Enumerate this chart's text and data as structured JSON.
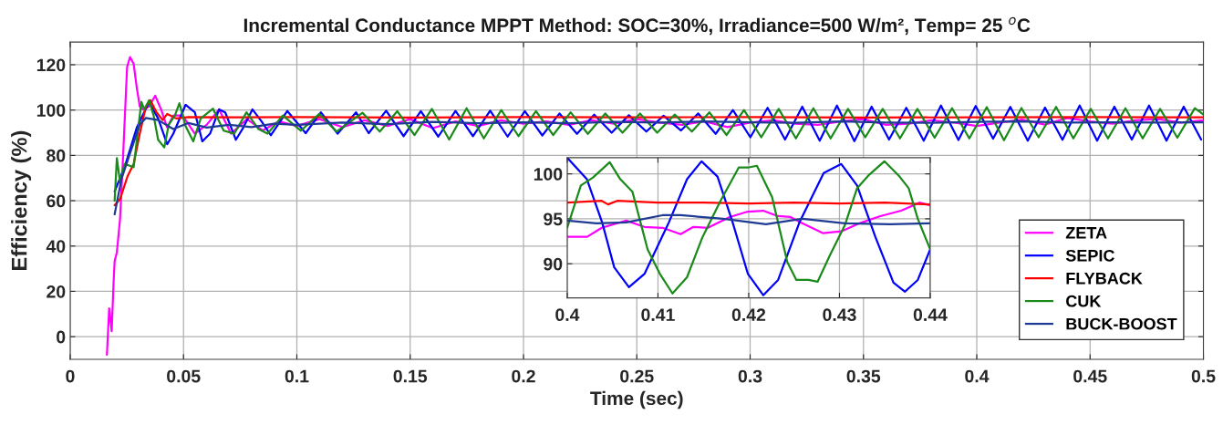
{
  "chart_data": [
    {
      "type": "line",
      "title": "Incremental Conductance MPPT Method: SOC=30%, Irradiance=500 W/m², Temp= 25 $^{o}$C",
      "xlabel": "Time (sec)",
      "ylabel": "Efficiency (%)",
      "xlim": [
        0,
        0.5
      ],
      "xticks": [
        0,
        0.05,
        0.1,
        0.15,
        0.2,
        0.25,
        0.3,
        0.35,
        0.4,
        0.45,
        0.5
      ],
      "ylim": [
        -10,
        130
      ],
      "yticks": [
        0,
        20,
        40,
        60,
        80,
        100,
        120
      ],
      "grid": true,
      "legend": "bottom right",
      "series": [
        {
          "name": "ZETA",
          "color": "#ff00ff",
          "x": [
            0.0162,
            0.0172,
            0.0183,
            0.0192,
            0.0196,
            0.0206,
            0.022,
            0.0233,
            0.0251,
            0.0264,
            0.028,
            0.0294,
            0.0307,
            0.0321,
            0.0348,
            0.0375,
            0.0401,
            0.0428,
            0.0455,
            0.0496,
            0.055,
            0.0603,
            0.0657,
            0.071,
            0.078,
            0.085,
            0.092,
            0.1,
            0.11,
            0.12,
            0.13,
            0.14,
            0.15,
            0.16,
            0.17,
            0.18,
            0.19,
            0.2,
            0.21,
            0.22,
            0.23,
            0.24,
            0.25,
            0.26,
            0.27,
            0.28,
            0.29,
            0.3,
            0.31,
            0.32,
            0.33,
            0.34,
            0.35,
            0.36,
            0.37,
            0.38,
            0.39,
            0.4,
            0.41,
            0.42,
            0.43,
            0.44,
            0.45,
            0.46,
            0.47,
            0.48,
            0.49,
            0.5
          ],
          "values": [
            -8,
            12.5,
            2.4,
            25.2,
            33.3,
            37.3,
            52,
            78.8,
            119,
            123.4,
            120.4,
            109.7,
            101.6,
            100.3,
            101.6,
            106.3,
            100.3,
            92.3,
            97.6,
            97.6,
            89.6,
            93.6,
            100.3,
            89.6,
            96,
            91,
            95,
            93,
            96,
            92.5,
            95.5,
            93,
            96,
            92,
            95,
            93,
            95.5,
            94,
            95,
            93.5,
            95.5,
            94,
            96,
            94.5,
            93.5,
            95,
            92.5,
            94.5,
            95.5,
            94,
            93.5,
            95,
            96,
            93.5,
            94,
            95.5,
            94.5,
            93,
            94.5,
            95.8,
            93.6,
            96.5,
            95,
            94,
            95.5,
            96,
            94.5,
            95.5
          ]
        },
        {
          "name": "SEPIC",
          "color": "#0000ff",
          "x": [
            0.0196,
            0.024,
            0.0294,
            0.0348,
            0.0388,
            0.0428,
            0.0455,
            0.0509,
            0.055,
            0.0583,
            0.0617,
            0.0657,
            0.0684,
            0.0731,
            0.0764,
            0.0804,
            0.0845,
            0.0885,
            0.0958,
            0.1039,
            0.1106,
            0.118,
            0.1261,
            0.1317,
            0.1394,
            0.1471,
            0.1547,
            0.1624,
            0.17,
            0.1777,
            0.1853,
            0.193,
            0.2006,
            0.2083,
            0.2159,
            0.2236,
            0.2312,
            0.2389,
            0.2465,
            0.2542,
            0.2618,
            0.2695,
            0.2771,
            0.2848,
            0.2924,
            0.3001,
            0.3077,
            0.3154,
            0.323,
            0.3307,
            0.3383,
            0.346,
            0.3536,
            0.3613,
            0.3689,
            0.3766,
            0.3842,
            0.3919,
            0.3995,
            0.4072,
            0.4148,
            0.4225,
            0.4301,
            0.4378,
            0.4454,
            0.4531,
            0.4607,
            0.4684,
            0.476,
            0.4837,
            0.4913,
            0.499
          ],
          "values": [
            64.1,
            74.8,
            92.3,
            103.5,
            96.3,
            84.9,
            89.6,
            102.3,
            99,
            86.2,
            89.6,
            100.3,
            99,
            86.9,
            92.3,
            100.3,
            94.9,
            88.9,
            99.6,
            89.8,
            99,
            89.6,
            99,
            89.8,
            99.7,
            88.5,
            99.5,
            88.3,
            99.6,
            88.5,
            99.7,
            88.3,
            99.5,
            88.8,
            98.5,
            89.5,
            98,
            90,
            97.7,
            90.5,
            97.5,
            91,
            98.5,
            89.5,
            100,
            88,
            101,
            87,
            101.5,
            86.5,
            102,
            86.3,
            101.5,
            87,
            101,
            86.5,
            102,
            86.8,
            101.8,
            87.4,
            101.4,
            86.5,
            101.1,
            86.9,
            102,
            86.5,
            101.5,
            87,
            102,
            86.5,
            101.5,
            87
          ]
        },
        {
          "name": "FLYBACK",
          "color": "#ff0000",
          "x": [
            0.0196,
            0.022,
            0.0253,
            0.028,
            0.0307,
            0.0334,
            0.0354,
            0.0381,
            0.0408,
            0.0428,
            0.0468,
            0.0522,
            0.075,
            0.1,
            0.15,
            0.2,
            0.25,
            0.3,
            0.35,
            0.4,
            0.45,
            0.5
          ],
          "values": [
            58,
            60.7,
            70.8,
            76.2,
            89.6,
            101.6,
            104.3,
            99,
            95.6,
            98.3,
            96.3,
            96.9,
            96.8,
            96.9,
            96.7,
            96.9,
            96.8,
            96.9,
            96.7,
            96.8,
            96.9,
            96.8
          ]
        },
        {
          "name": "CUK",
          "color": "#1a8a1a",
          "x": [
            0.0196,
            0.0206,
            0.022,
            0.024,
            0.028,
            0.0314,
            0.0327,
            0.0348,
            0.0368,
            0.0388,
            0.0415,
            0.0435,
            0.0462,
            0.0482,
            0.0509,
            0.0543,
            0.0576,
            0.063,
            0.0677,
            0.0724,
            0.0778,
            0.0831,
            0.0871,
            0.0938,
            0.1018,
            0.1099,
            0.1175,
            0.129,
            0.1366,
            0.1443,
            0.1519,
            0.1596,
            0.1672,
            0.1749,
            0.1825,
            0.1902,
            0.1978,
            0.2055,
            0.2131,
            0.2208,
            0.2284,
            0.2361,
            0.2437,
            0.2514,
            0.259,
            0.2667,
            0.2743,
            0.282,
            0.2896,
            0.2973,
            0.3049,
            0.3126,
            0.3202,
            0.3279,
            0.3355,
            0.3432,
            0.3508,
            0.3585,
            0.3661,
            0.3738,
            0.3814,
            0.3891,
            0.3967,
            0.4044,
            0.412,
            0.4197,
            0.4273,
            0.435,
            0.4426,
            0.4503,
            0.4579,
            0.4656,
            0.4732,
            0.4809,
            0.4885,
            0.4962,
            0.5
          ],
          "values": [
            60,
            78.8,
            68.1,
            76.2,
            74.8,
            103.6,
            100.3,
            104.3,
            97.6,
            86.9,
            83.5,
            93.6,
            97.6,
            103,
            92.9,
            86.2,
            96.3,
            100.6,
            90.9,
            89.6,
            99,
            91.6,
            89.6,
            97.6,
            90.9,
            98.3,
            90.5,
            98.8,
            90.5,
            99.5,
            89,
            100.5,
            87,
            100.8,
            87.5,
            100,
            88.5,
            99.5,
            89,
            99,
            89.5,
            98.5,
            90,
            98.5,
            90,
            98,
            90.5,
            99,
            89,
            100,
            88,
            100.5,
            87.5,
            100.8,
            87.5,
            100.5,
            88,
            100.5,
            87.5,
            100.5,
            87.8,
            100.8,
            87.5,
            101.3,
            86.7,
            100.9,
            88,
            101.4,
            87.5,
            100.5,
            87.5,
            100.8,
            87.5,
            100.5,
            87.8,
            100.8,
            98
          ]
        },
        {
          "name": "BUCK-BOOST",
          "color": "#1f3a93",
          "x": [
            0.0196,
            0.0226,
            0.0266,
            0.0307,
            0.0334,
            0.0388,
            0.0455,
            0.0522,
            0.0603,
            0.07,
            0.08,
            0.09,
            0.1,
            0.12,
            0.14,
            0.16,
            0.18,
            0.2,
            0.22,
            0.24,
            0.26,
            0.28,
            0.3,
            0.32,
            0.34,
            0.36,
            0.38,
            0.4,
            0.42,
            0.44,
            0.46,
            0.48,
            0.5
          ],
          "values": [
            54,
            69.5,
            81.5,
            93.6,
            96.5,
            95.6,
            91.6,
            94.3,
            92.3,
            93.5,
            92.5,
            94,
            93.5,
            94.5,
            93.8,
            94.8,
            94.2,
            94.6,
            94.2,
            94.8,
            94.5,
            95,
            94.6,
            94.4,
            95,
            94.5,
            94.4,
            94.8,
            95,
            94.5,
            94.6,
            94.5,
            94.6
          ]
        }
      ]
    },
    {
      "type": "line",
      "xlim": [
        0.4,
        0.44
      ],
      "xticks": [
        0.4,
        0.41,
        0.42,
        0.43,
        0.44
      ],
      "ylim": [
        86.2,
        101.8
      ],
      "yticks": [
        90,
        95,
        100
      ],
      "grid": true,
      "series": [
        {
          "color": "#ff00ff",
          "x": [
            0.4,
            0.4022,
            0.4038,
            0.4065,
            0.4085,
            0.4105,
            0.4125,
            0.4139,
            0.4155,
            0.4179,
            0.4199,
            0.4216,
            0.4232,
            0.4246,
            0.4259,
            0.4282,
            0.4302,
            0.4322,
            0.4345,
            0.4368,
            0.4388,
            0.44
          ],
          "values": [
            93,
            93,
            94,
            94.8,
            94.1,
            94,
            93.3,
            94.1,
            94,
            95.2,
            95.8,
            95.9,
            95.3,
            95.2,
            94.5,
            93.4,
            93.6,
            94.5,
            95.3,
            95.9,
            96.8,
            96.5
          ]
        },
        {
          "color": "#0000ff",
          "x": [
            0.4,
            0.40217,
            0.40385,
            0.40518,
            0.4068,
            0.40853,
            0.4112,
            0.4132,
            0.4148,
            0.41656,
            0.41823,
            0.4199,
            0.4216,
            0.42324,
            0.42559,
            0.42826,
            0.4302,
            0.43194,
            0.43395,
            0.43595,
            0.43722,
            0.43863,
            0.44
          ],
          "values": [
            101.8,
            99.4,
            94.6,
            89.6,
            87.4,
            88.9,
            94.6,
            99.4,
            101.4,
            99.7,
            94.6,
            88.9,
            86.5,
            88.2,
            94.6,
            100.1,
            101.1,
            98.7,
            93,
            87.9,
            86.9,
            88.2,
            91.6
          ]
        },
        {
          "color": "#ff0000",
          "x": [
            0.4,
            0.4038,
            0.4045,
            0.4055,
            0.41,
            0.415,
            0.42,
            0.425,
            0.43,
            0.435,
            0.44
          ],
          "values": [
            96.8,
            97,
            96.6,
            97,
            96.8,
            96.8,
            96.7,
            96.8,
            96.7,
            96.8,
            96.6
          ]
        },
        {
          "color": "#1a8a1a",
          "x": [
            0.4,
            0.4015,
            0.40284,
            0.40468,
            0.40585,
            0.40719,
            0.40886,
            0.4102,
            0.4116,
            0.4132,
            0.41488,
            0.41689,
            0.4189,
            0.4199,
            0.4209,
            0.42258,
            0.42425,
            0.42525,
            0.42659,
            0.42759,
            0.42893,
            0.4306,
            0.43194,
            0.43328,
            0.43495,
            0.43662,
            0.43763,
            0.43863,
            0.44
          ],
          "values": [
            94,
            98.7,
            99.6,
            101.3,
            99.4,
            98,
            91.6,
            88.9,
            86.7,
            88.5,
            92.9,
            97,
            100.7,
            100.7,
            100.9,
            97.4,
            90.2,
            88.2,
            88.2,
            88,
            90.9,
            94.3,
            98.4,
            99.9,
            101.4,
            99.7,
            98.4,
            95,
            91.6
          ]
        },
        {
          "color": "#1f3a93",
          "x": [
            0.4,
            0.4032,
            0.4065,
            0.4105,
            0.4125,
            0.4172,
            0.4219,
            0.4259,
            0.4306,
            0.4356,
            0.44
          ],
          "values": [
            94.8,
            94.5,
            94.6,
            95.4,
            95.4,
            95,
            94.4,
            95,
            94.5,
            94.4,
            94.5
          ]
        }
      ]
    }
  ]
}
